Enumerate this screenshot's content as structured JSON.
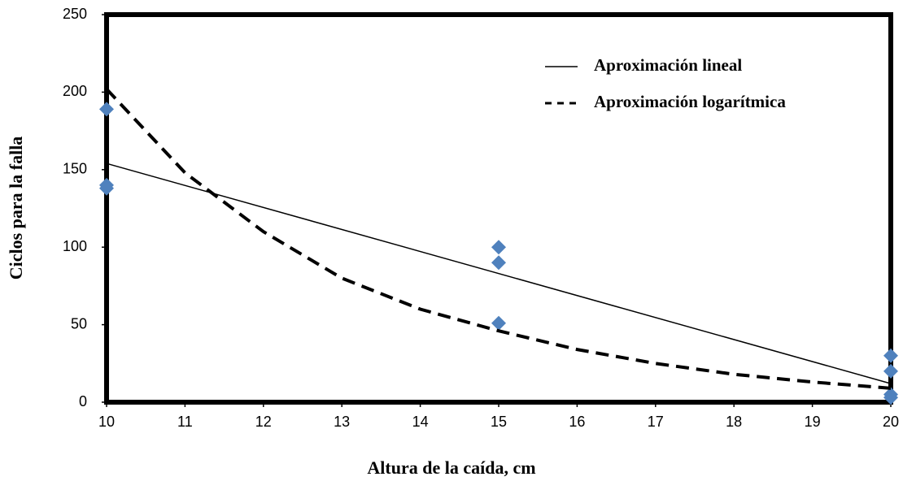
{
  "chart_data": {
    "type": "scatter",
    "xlabel": "Altura de la caída, cm",
    "ylabel": "Ciclos para la falla",
    "xlim": [
      10,
      20
    ],
    "xticks": [
      10,
      11,
      12,
      13,
      14,
      15,
      16,
      17,
      18,
      19,
      20
    ],
    "ylim": [
      0,
      250
    ],
    "yticks": [
      0,
      50,
      100,
      150,
      200,
      250
    ],
    "grid": false,
    "legend": "upper right",
    "series": [
      {
        "color": "#4f81bd",
        "marker": "diamond",
        "x": [
          10,
          10,
          10,
          15,
          15,
          15,
          20,
          20,
          20,
          20
        ],
        "values": [
          189,
          140,
          138,
          100,
          90,
          51,
          30,
          20,
          5,
          3
        ]
      },
      {
        "name": "Aproximación lineal",
        "color": "#000000",
        "line_style": "solid",
        "x": [
          10,
          20
        ],
        "values": [
          154,
          12
        ]
      },
      {
        "name": "Aproximación logarítmica",
        "color": "#000000",
        "line_style": "dashed",
        "x": [
          10,
          11,
          12,
          13,
          14,
          15,
          16,
          17,
          18,
          19,
          20
        ],
        "values": [
          202,
          148,
          110,
          80,
          60,
          46,
          34,
          25,
          18,
          13,
          9
        ]
      }
    ]
  }
}
